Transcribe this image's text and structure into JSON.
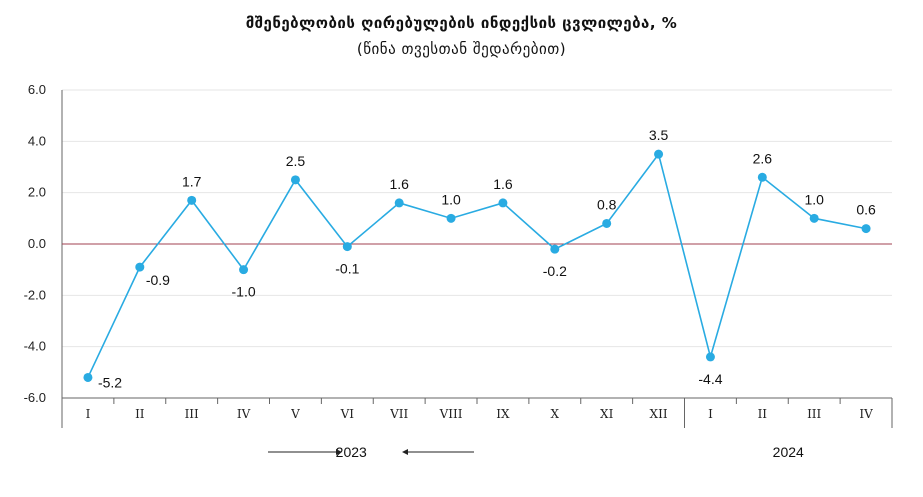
{
  "chart_data": {
    "type": "line",
    "title": "მშენებლობის ღირებულების ინდექსის ცვლილება, %",
    "subtitle": "(წინა თვესთან შედარებით)",
    "categories": [
      "I",
      "II",
      "III",
      "IV",
      "V",
      "VI",
      "VII",
      "VIII",
      "IX",
      "X",
      "XI",
      "XII",
      "I",
      "II",
      "III",
      "IV"
    ],
    "values": [
      -5.2,
      -0.9,
      1.7,
      -1.0,
      2.5,
      -0.1,
      1.6,
      1.0,
      1.6,
      -0.2,
      0.8,
      3.5,
      -4.4,
      2.6,
      1.0,
      0.6
    ],
    "data_labels": [
      "-5.2",
      "-0.9",
      "1.7",
      "-1.0",
      "2.5",
      "-0.1",
      "1.6",
      "1.0",
      "1.6",
      "-0.2",
      "0.8",
      "3.5",
      "-4.4",
      "2.6",
      "1.0",
      "0.6"
    ],
    "ylim": [
      -6,
      6
    ],
    "yticks": [
      6,
      4,
      2,
      0,
      -2,
      -4,
      -6
    ],
    "ytick_labels": [
      "6.0",
      "4.0",
      "2.0",
      "0.0",
      "-2.0",
      "-4.0",
      "-6.0"
    ],
    "grid": true,
    "groups": [
      {
        "label": "2023",
        "start": 0,
        "end": 11
      },
      {
        "label": "2024",
        "start": 12,
        "end": 15
      }
    ],
    "colors": {
      "line": "#29abe2",
      "zero_line": "#a04050",
      "grid": "#e6e6e6",
      "axis": "#666666"
    }
  }
}
